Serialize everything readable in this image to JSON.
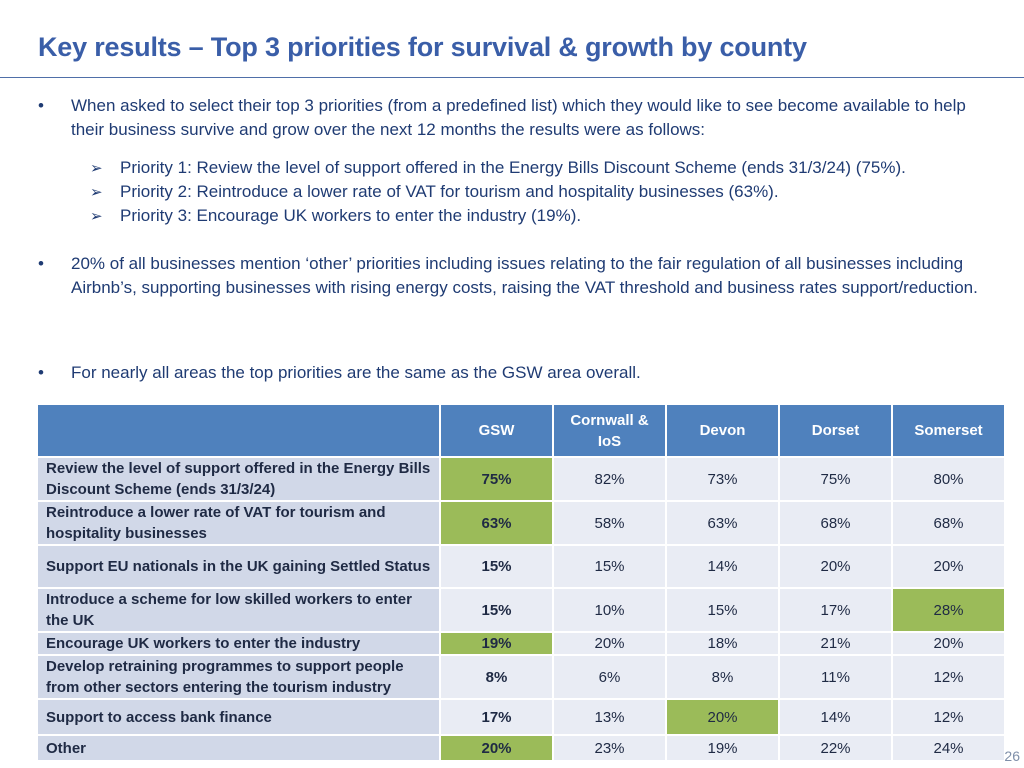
{
  "title": "Key results – Top 3 priorities for survival & growth by county",
  "bullets": [
    "When asked to select their top 3 priorities (from a predefined list) which they would like to see become available to help their business survive and grow over the next 12 months the results were as follows:",
    "20% of all businesses mention ‘other’ priorities including issues relating to the fair regulation of all businesses including Airbnb’s, supporting businesses with rising energy costs, raising the VAT threshold and business rates support/reduction.",
    "For nearly all areas the top priorities are the same as the GSW area overall."
  ],
  "sub_bullets": [
    "Priority 1: Review the level of support offered in the Energy Bills Discount Scheme (ends 31/3/24) (75%).",
    "Priority 2: Reintroduce a lower rate of VAT for tourism and hospitality businesses (63%).",
    "Priority 3:  Encourage UK workers to enter the industry (19%)."
  ],
  "table": {
    "columns": [
      "GSW",
      "Cornwall & IoS",
      "Devon",
      "Dorset",
      "Somerset"
    ],
    "rows": [
      {
        "label": "Review the level of support offered in the Energy Bills Discount Scheme (ends 31/3/24)",
        "values": [
          "75%",
          "82%",
          "73%",
          "75%",
          "80%"
        ],
        "highlight": [
          true,
          false,
          false,
          false,
          false
        ]
      },
      {
        "label": "Reintroduce a lower rate of VAT for tourism and hospitality businesses",
        "values": [
          "63%",
          "58%",
          "63%",
          "68%",
          "68%"
        ],
        "highlight": [
          true,
          false,
          false,
          false,
          false
        ]
      },
      {
        "label": "Support EU nationals in the UK gaining Settled Status",
        "values": [
          "15%",
          "15%",
          "14%",
          "20%",
          "20%"
        ],
        "highlight": [
          false,
          false,
          false,
          false,
          false
        ]
      },
      {
        "label": "Introduce a scheme for low skilled workers to enter the UK",
        "values": [
          "15%",
          "10%",
          "15%",
          "17%",
          "28%"
        ],
        "highlight": [
          false,
          false,
          false,
          false,
          true
        ]
      },
      {
        "label": "Encourage UK workers to enter the industry",
        "values": [
          "19%",
          "20%",
          "18%",
          "21%",
          "20%"
        ],
        "highlight": [
          true,
          false,
          false,
          false,
          false
        ]
      },
      {
        "label": "Develop retraining programmes to support people from other sectors entering the tourism industry",
        "values": [
          "8%",
          "6%",
          "8%",
          "11%",
          "12%"
        ],
        "highlight": [
          false,
          false,
          false,
          false,
          false
        ]
      },
      {
        "label": "Support to access bank finance",
        "values": [
          "17%",
          "13%",
          "20%",
          "14%",
          "12%"
        ],
        "highlight": [
          false,
          false,
          true,
          false,
          false
        ]
      },
      {
        "label": "Other",
        "values": [
          "20%",
          "23%",
          "19%",
          "22%",
          "24%"
        ],
        "highlight": [
          true,
          false,
          false,
          false,
          false
        ]
      }
    ]
  },
  "colors": {
    "title": "#3a5ea8",
    "header_bg": "#4f81bd",
    "label_bg": "#d1d8e8",
    "cell_bg": "#e9ecf4",
    "highlight": "#9bbb59"
  },
  "page_number": "26"
}
